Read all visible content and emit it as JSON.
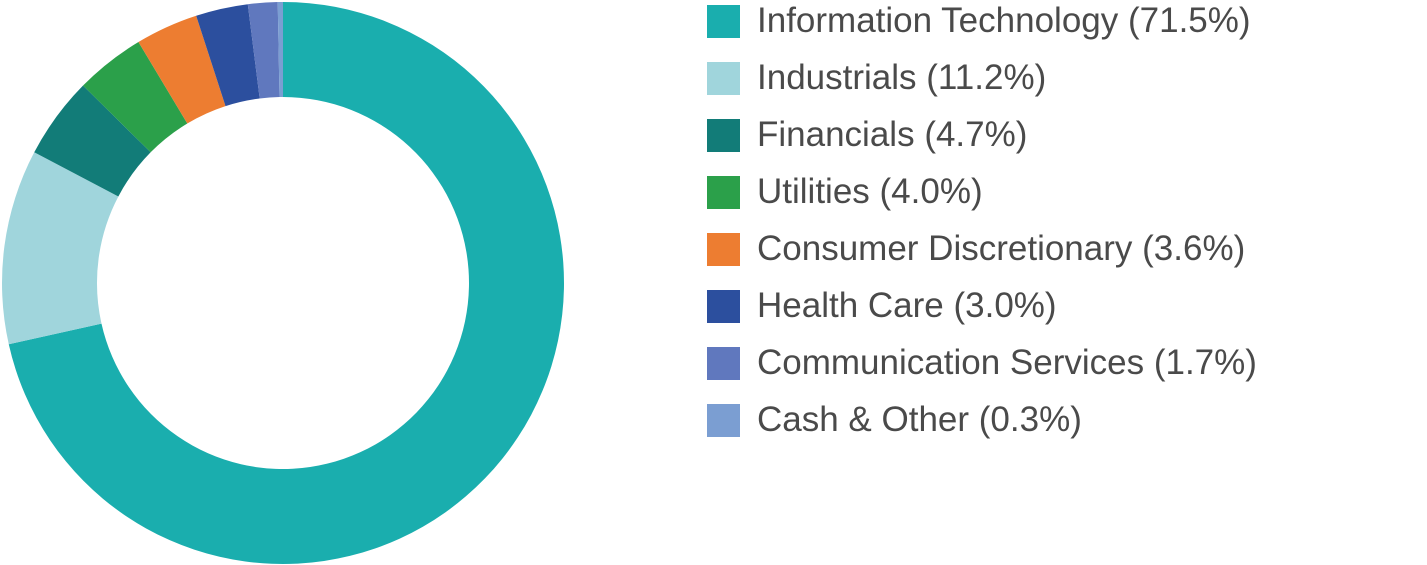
{
  "chart_data": {
    "type": "donut",
    "categories": [
      "Information Technology",
      "Industrials",
      "Financials",
      "Utilities",
      "Consumer Discretionary",
      "Health Care",
      "Communication Services",
      "Cash & Other"
    ],
    "values": [
      71.5,
      11.2,
      4.7,
      4.0,
      3.6,
      3.0,
      1.7,
      0.3
    ],
    "value_labels": [
      "(71.5%)",
      "(11.2%)",
      "(4.7%)",
      "(4.0%)",
      "(3.6%)",
      "(3.0%)",
      "(1.7%)",
      "(0.3%)"
    ],
    "colors": [
      "#1aaeae",
      "#a0d5dc",
      "#127c78",
      "#2ba04a",
      "#ed7d31",
      "#2c4f9e",
      "#6078be",
      "#7b9ed2"
    ],
    "legend": "right"
  }
}
